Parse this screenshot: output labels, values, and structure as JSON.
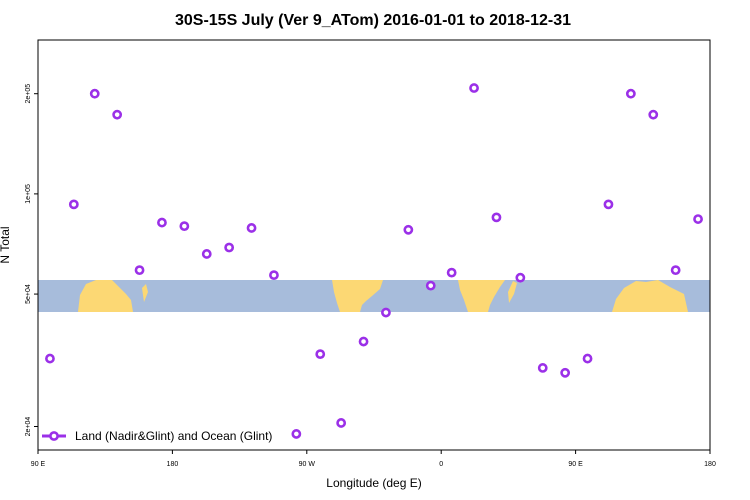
{
  "chart_data": {
    "type": "scatter",
    "title": "30S-15S July (Ver 9_ATom)   2016-01-01 to 2018-12-31",
    "xlabel": "Longitude (deg E)",
    "ylabel": "N Total",
    "x_scale": "linear",
    "y_scale": "log",
    "xlim": [
      90,
      540
    ],
    "ylim": [
      17000,
      290000
    ],
    "x_ticks": [
      {
        "value": 90,
        "label": "90 E"
      },
      {
        "value": 180,
        "label": "180"
      },
      {
        "value": 270,
        "label": "90 W"
      },
      {
        "value": 360,
        "label": "0"
      },
      {
        "value": 450,
        "label": "90 E"
      },
      {
        "value": 540,
        "label": "180"
      }
    ],
    "y_ticks": [
      {
        "value": 20000,
        "label": "2e+04"
      },
      {
        "value": 50000,
        "label": "5e+04"
      },
      {
        "value": 100000,
        "label": "1e+05"
      },
      {
        "value": 200000,
        "label": "2e+05"
      }
    ],
    "grid": false,
    "legend_position": "bottom-left",
    "series": [
      {
        "name": "Land (Nadir&Glint) and Ocean (Glint)",
        "color": "#9b30e8",
        "x": [
          98,
          114,
          128,
          143,
          158,
          173,
          188,
          203,
          218,
          233,
          248,
          263,
          279,
          293,
          308,
          323,
          338,
          353,
          367,
          382,
          397,
          413,
          428,
          443,
          458,
          472,
          487,
          502,
          517,
          532
        ],
        "y": [
          32000,
          93000,
          200000,
          173000,
          59000,
          82000,
          80000,
          66000,
          69000,
          79000,
          57000,
          19000,
          33000,
          20500,
          36000,
          44000,
          78000,
          53000,
          58000,
          208000,
          85000,
          56000,
          30000,
          29000,
          32000,
          93000,
          200000,
          173000,
          59000,
          84000
        ]
      }
    ]
  }
}
